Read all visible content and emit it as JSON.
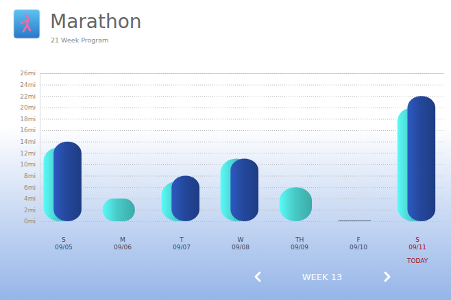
{
  "chart_data": {
    "type": "bar",
    "title": "Marathon",
    "subtitle": "21 Week Program",
    "categories": [
      "S",
      "M",
      "T",
      "W",
      "TH",
      "F",
      "S"
    ],
    "dates": [
      "09/05",
      "09/06",
      "09/07",
      "09/08",
      "09/09",
      "09/10",
      "09/11"
    ],
    "series": [
      {
        "color": "#48cbc8",
        "values": [
          13,
          4,
          7,
          11,
          6,
          0,
          20
        ]
      },
      {
        "color": "#24489c",
        "values": [
          14,
          null,
          8,
          11,
          null,
          null,
          22
        ]
      }
    ],
    "ylim": [
      0,
      26
    ],
    "yticks": [
      {
        "value": 0,
        "label": "0mi"
      },
      {
        "value": 2,
        "label": "2mi"
      },
      {
        "value": 4,
        "label": "4mi"
      },
      {
        "value": 6,
        "label": "6mi"
      },
      {
        "value": 8,
        "label": "8mi"
      },
      {
        "value": 10,
        "label": "10mi"
      },
      {
        "value": 12,
        "label": "12mi"
      },
      {
        "value": 14,
        "label": "14mi"
      },
      {
        "value": 16,
        "label": "16mi"
      },
      {
        "value": 18,
        "label": "18mi"
      },
      {
        "value": 20,
        "label": "20mi"
      },
      {
        "value": 22,
        "label": "22mi"
      },
      {
        "value": 24,
        "label": "24mi"
      },
      {
        "value": 26,
        "label": "26mi"
      }
    ],
    "grid": true,
    "annotations": [
      {
        "text": "TODAY",
        "index": 6
      }
    ],
    "navigation": "WEEK 13"
  }
}
